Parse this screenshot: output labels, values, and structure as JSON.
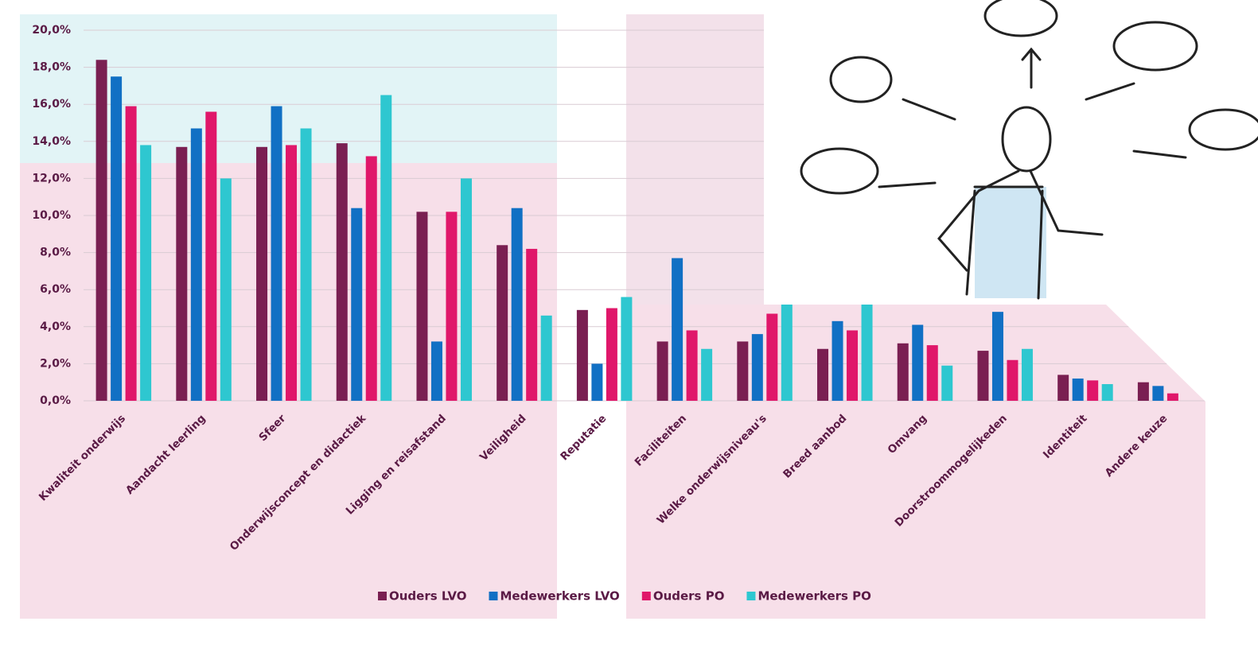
{
  "chart_data": {
    "type": "bar",
    "categories": [
      "Kwaliteit onderwijs",
      "Aandacht leerling",
      "Sfeer",
      "Onderwijsconcept en didactiek",
      "Ligging en reisafstand",
      "Veiligheid",
      "Reputatie",
      "Faciliteiten",
      "Welke onderwijsniveau's",
      "Breed aanbod",
      "Omvang",
      "Doorstroommogelijkeden",
      "Identiteit",
      "Andere keuze"
    ],
    "series": [
      {
        "name": "Ouders LVO",
        "color": "#7a1f52",
        "values": [
          18.4,
          13.7,
          13.7,
          13.9,
          10.2,
          8.4,
          4.9,
          3.2,
          3.2,
          2.8,
          3.1,
          2.7,
          1.4,
          1.0
        ]
      },
      {
        "name": "Medewerkers LVO",
        "color": "#1170c4",
        "values": [
          17.5,
          14.7,
          15.9,
          10.4,
          3.2,
          10.4,
          2.0,
          7.7,
          3.6,
          4.3,
          4.1,
          4.8,
          1.2,
          0.8
        ]
      },
      {
        "name": "Ouders PO",
        "color": "#e0176a",
        "values": [
          15.9,
          15.6,
          13.8,
          13.2,
          10.2,
          8.2,
          5.0,
          3.8,
          4.7,
          3.8,
          3.0,
          2.2,
          1.1,
          0.4
        ]
      },
      {
        "name": "Medewerkers PO",
        "color": "#2ec7d0",
        "values": [
          13.8,
          12.0,
          14.7,
          16.5,
          12.0,
          4.6,
          5.6,
          2.8,
          5.2,
          5.2,
          1.9,
          2.8,
          0.9,
          0
        ]
      }
    ],
    "ylim": [
      0,
      20
    ],
    "yticks": [
      {
        "value": 0,
        "label": "0,0%"
      },
      {
        "value": 2,
        "label": "2,0%"
      },
      {
        "value": 4,
        "label": "4,0%"
      },
      {
        "value": 6,
        "label": "6,0%"
      },
      {
        "value": 8,
        "label": "8,0%"
      },
      {
        "value": 10,
        "label": "10,0%"
      },
      {
        "value": 12,
        "label": "12,0%"
      },
      {
        "value": 14,
        "label": "14,0%"
      },
      {
        "value": 16,
        "label": "16,0%"
      },
      {
        "value": 18,
        "label": "18,0%"
      },
      {
        "value": 20,
        "label": "20,0%"
      }
    ],
    "grid": true
  }
}
